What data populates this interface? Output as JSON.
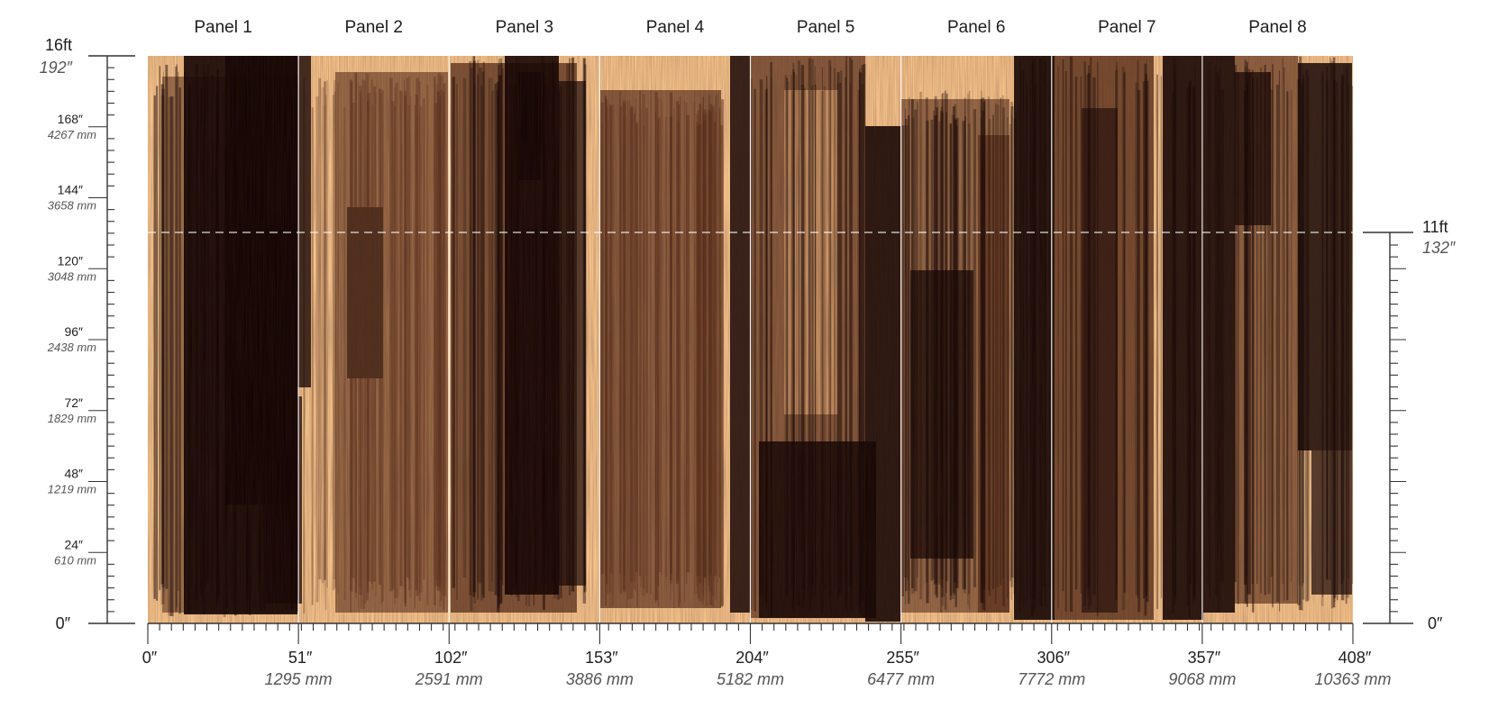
{
  "panels": [
    "Panel 1",
    "Panel 2",
    "Panel 3",
    "Panel 4",
    "Panel 5",
    "Panel 6",
    "Panel 7",
    "Panel 8"
  ],
  "left_ruler": {
    "top_ft": "16ft",
    "top_in": "192″",
    "ticks": [
      {
        "in": "168″",
        "mm": "4267 mm"
      },
      {
        "in": "144″",
        "mm": "3658 mm"
      },
      {
        "in": "120″",
        "mm": "3048 mm"
      },
      {
        "in": "96″",
        "mm": "2438 mm"
      },
      {
        "in": "72″",
        "mm": "1829 mm"
      },
      {
        "in": "48″",
        "mm": "1219 mm"
      },
      {
        "in": "24″",
        "mm": "610 mm"
      }
    ],
    "zero": "0″"
  },
  "right_ruler": {
    "top_ft": "11ft",
    "top_in": "132″",
    "zero": "0″"
  },
  "bottom_ruler": [
    {
      "in": "0″",
      "mm": ""
    },
    {
      "in": "51″",
      "mm": "1295 mm"
    },
    {
      "in": "102″",
      "mm": "2591 mm"
    },
    {
      "in": "153″",
      "mm": "3886 mm"
    },
    {
      "in": "204″",
      "mm": "5182 mm"
    },
    {
      "in": "255″",
      "mm": "6477 mm"
    },
    {
      "in": "306″",
      "mm": "7772 mm"
    },
    {
      "in": "357″",
      "mm": "9068 mm"
    },
    {
      "in": "408″",
      "mm": "10363 mm"
    }
  ],
  "colors": {
    "canvas": "#f8c48d",
    "paint_dark": "#160606",
    "paint_mid": "#5a2f1c",
    "paint_light": "#9b6a4a",
    "guide_dashed": "#ffffff"
  }
}
